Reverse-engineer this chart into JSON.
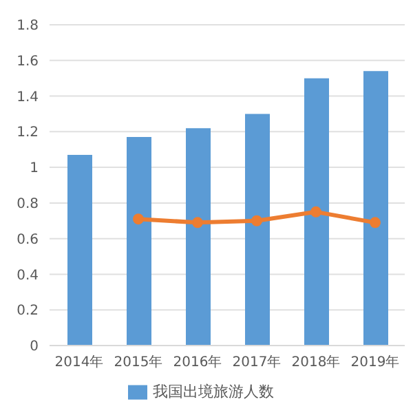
{
  "chart_data": {
    "type": "bar",
    "categories": [
      "2014年",
      "2015年",
      "2016年",
      "2017年",
      "2018年",
      "2019年"
    ],
    "series": [
      {
        "name": "我国出境旅游人数",
        "color": "#5b9bd5",
        "values": [
          1.07,
          1.17,
          1.22,
          1.3,
          1.5,
          1.54
        ]
      },
      {
        "type": "line",
        "color": "#ed7d31",
        "values": [
          null,
          0.71,
          0.69,
          0.7,
          0.75,
          0.69
        ]
      }
    ],
    "ylim": [
      0,
      1.8
    ],
    "yticks": [
      0,
      0.2,
      0.4,
      0.6,
      0.8,
      1,
      1.2,
      1.4,
      1.6,
      1.8
    ],
    "grid": "y",
    "legend": "bottom",
    "marker": "circle",
    "line_style": "solid"
  }
}
